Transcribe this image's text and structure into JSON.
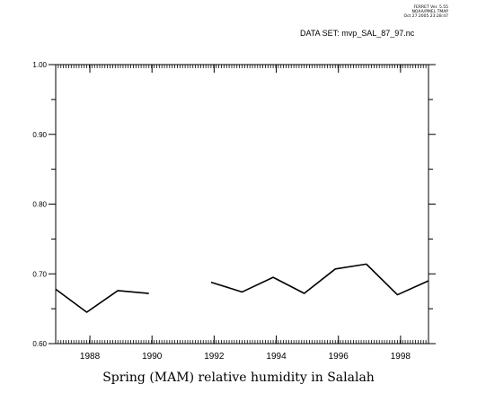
{
  "header": {
    "version": "FERRET Ver. 5.55",
    "org": "NOAA/PMEL TMAP",
    "timestamp": "Oct 27 2005 23:28:47",
    "dataset_prefix": "DATA SET:",
    "dataset_name": "mvp_SAL_87_97.nc"
  },
  "chart_data": {
    "type": "line",
    "title": "Spring (MAM) relative humidity in Salalah",
    "xlabel": "",
    "ylabel": "",
    "xlim": [
      1986.9,
      1998.9
    ],
    "ylim": [
      0.6,
      1.0
    ],
    "x_tick_labels": [
      "1988",
      "1990",
      "1992",
      "1994",
      "1996",
      "1998"
    ],
    "y_tick_labels": [
      "0.60",
      "0.70",
      "0.80",
      "0.90",
      "1.00"
    ],
    "grid": false,
    "legend": "none",
    "line_color": "#000000",
    "series": [
      {
        "x": [
          1986.9,
          1987.9,
          1988.9,
          1989.9,
          1990.9,
          1991.9,
          1992.9,
          1993.9,
          1994.9,
          1995.9,
          1996.9,
          1997.9,
          1998.9
        ],
        "values": [
          0.678,
          0.645,
          0.676,
          0.672,
          null,
          0.688,
          0.674,
          0.695,
          0.672,
          0.707,
          0.714,
          0.67,
          0.69
        ]
      }
    ]
  }
}
